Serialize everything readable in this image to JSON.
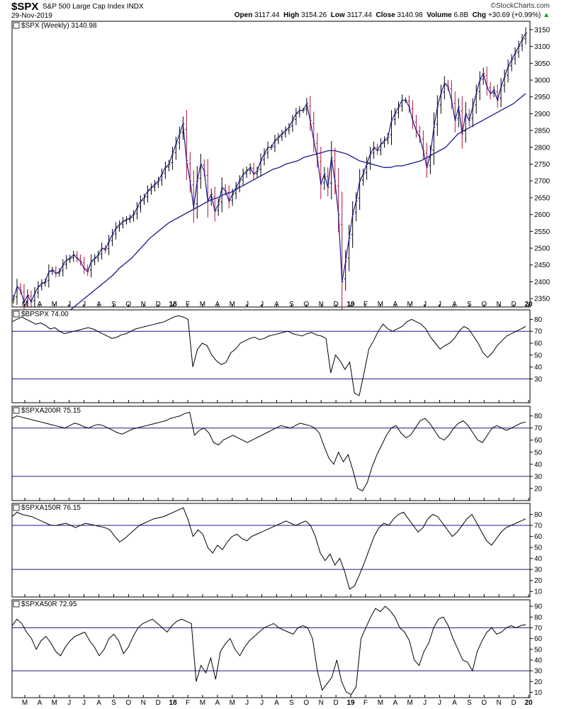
{
  "header": {
    "symbol": "$SPX",
    "name": "S&P 500 Large Cap Index",
    "exchange": "INDX",
    "date": "29-Nov-2019",
    "logo": "©StockCharts.com",
    "open_label": "Open",
    "open": "3117.44",
    "high_label": "High",
    "high": "3154.26",
    "low_label": "Low",
    "low": "3117.44",
    "close_label": "Close",
    "close": "3140.98",
    "volume_label": "Volume",
    "volume": "6.8B",
    "chg_label": "Chg",
    "chg": "+30.69 (+0.99%)",
    "chg_arrow": "▲"
  },
  "colors": {
    "up_bar": "#000000",
    "down_bar": "#b0103a",
    "price_line": "#1a1a8c",
    "ma_line": "#1a1a8c",
    "ref_line": "#1a1a8c",
    "indicator": "#000000"
  },
  "x_axis": {
    "ticks": [
      "M",
      "A",
      "M",
      "J",
      "J",
      "A",
      "S",
      "O",
      "N",
      "D",
      "18",
      "F",
      "M",
      "A",
      "M",
      "J",
      "J",
      "A",
      "S",
      "O",
      "N",
      "D",
      "19",
      "F",
      "M",
      "A",
      "M",
      "J",
      "J",
      "A",
      "S",
      "O",
      "N",
      "D",
      "20"
    ],
    "bold_ticks": [
      "18",
      "19",
      "20"
    ]
  },
  "chart_data": [
    {
      "type": "line",
      "title": "$SPX (Weekly) 3140.98",
      "style": "weekly OHLC bars with close line and 40-week moving average",
      "ylim": [
        2325,
        3175
      ],
      "y_ticks": [
        2350,
        2400,
        2450,
        2500,
        2550,
        2600,
        2650,
        2700,
        2750,
        2800,
        2850,
        2900,
        2950,
        3000,
        3050,
        3100,
        3150
      ],
      "x_range": [
        "2017-03",
        "2019-12"
      ],
      "series": [
        {
          "values": [
            2350,
            2385,
            2375,
            2340,
            2360,
            2340,
            2365,
            2385,
            2395,
            2400,
            2430,
            2435,
            2425,
            2430,
            2450,
            2465,
            2470,
            2480,
            2470,
            2460,
            2440,
            2430,
            2460,
            2470,
            2480,
            2500,
            2495,
            2520,
            2540,
            2560,
            2570,
            2580,
            2585,
            2590,
            2600,
            2620,
            2640,
            2650,
            2670,
            2680,
            2690,
            2700,
            2720,
            2740,
            2750,
            2780,
            2810,
            2840,
            2870,
            2760,
            2700,
            2620,
            2700,
            2750,
            2730,
            2640,
            2660,
            2610,
            2630,
            2680,
            2670,
            2640,
            2660,
            2680,
            2700,
            2720,
            2730,
            2740,
            2720,
            2730,
            2760,
            2780,
            2800,
            2800,
            2820,
            2830,
            2840,
            2850,
            2860,
            2880,
            2900,
            2910,
            2910,
            2930,
            2880,
            2820,
            2770,
            2690,
            2720,
            2680,
            2770,
            2700,
            2600,
            2400,
            2460,
            2530,
            2600,
            2640,
            2700,
            2720,
            2750,
            2780,
            2800,
            2790,
            2810,
            2820,
            2830,
            2880,
            2900,
            2920,
            2940,
            2940,
            2920,
            2880,
            2850,
            2830,
            2790,
            2740,
            2780,
            2860,
            2920,
            2960,
            2990,
            2980,
            2940,
            2880,
            2920,
            2840,
            2900,
            2880,
            2920,
            2960,
            3000,
            3020,
            2980,
            2960,
            2970,
            2940,
            2980,
            3010,
            3040,
            3060,
            3080,
            3100,
            3120,
            3140
          ]
        },
        {
          "values": [
            2300,
            2315,
            2330,
            2345,
            2360,
            2375,
            2390,
            2405,
            2420,
            2440,
            2455,
            2470,
            2490,
            2510,
            2530,
            2545,
            2560,
            2575,
            2585,
            2595,
            2605,
            2615,
            2625,
            2635,
            2645,
            2650,
            2660,
            2665,
            2675,
            2685,
            2695,
            2705,
            2715,
            2725,
            2735,
            2740,
            2750,
            2755,
            2760,
            2770,
            2775,
            2780,
            2785,
            2790,
            2790,
            2785,
            2780,
            2770,
            2760,
            2755,
            2750,
            2745,
            2740,
            2740,
            2745,
            2745,
            2750,
            2755,
            2760,
            2770,
            2780,
            2790,
            2800,
            2820,
            2840,
            2850,
            2860,
            2870,
            2880,
            2890,
            2900,
            2910,
            2920,
            2930,
            2945,
            2960
          ]
        }
      ]
    },
    {
      "type": "line",
      "title": "$BPSPX 74.00",
      "ylim": [
        10,
        88
      ],
      "y_ticks": [
        30,
        40,
        50,
        60,
        70,
        80
      ],
      "ref_lines": [
        70,
        30
      ],
      "series": [
        {
          "values": [
            78,
            80,
            82,
            80,
            78,
            76,
            77,
            75,
            72,
            73,
            70,
            68,
            69,
            70,
            71,
            72,
            73,
            72,
            70,
            68,
            66,
            64,
            65,
            67,
            68,
            70,
            72,
            73,
            74,
            75,
            76,
            77,
            78,
            80,
            82,
            83,
            82,
            80,
            40,
            55,
            60,
            58,
            50,
            45,
            42,
            44,
            52,
            55,
            60,
            62,
            64,
            65,
            63,
            64,
            66,
            67,
            68,
            69,
            70,
            68,
            67,
            66,
            68,
            69,
            67,
            66,
            64,
            35,
            50,
            45,
            38,
            44,
            18,
            16,
            35,
            55,
            62,
            70,
            76,
            72,
            70,
            72,
            74,
            78,
            80,
            78,
            76,
            72,
            65,
            60,
            55,
            58,
            60,
            64,
            70,
            74,
            72,
            66,
            60,
            52,
            48,
            52,
            58,
            62,
            66,
            68,
            70,
            72,
            74
          ]
        }
      ]
    },
    {
      "type": "line",
      "title": "$SPXA200R 75.15",
      "ylim": [
        10,
        88
      ],
      "y_ticks": [
        20,
        30,
        40,
        50,
        60,
        70,
        80
      ],
      "ref_lines": [
        70,
        30
      ],
      "series": [
        {
          "values": [
            78,
            80,
            79,
            78,
            77,
            76,
            75,
            74,
            73,
            72,
            71,
            70,
            72,
            74,
            73,
            71,
            70,
            72,
            73,
            72,
            70,
            68,
            66,
            65,
            67,
            69,
            70,
            71,
            72,
            73,
            74,
            75,
            76,
            78,
            79,
            80,
            82,
            83,
            64,
            68,
            70,
            66,
            58,
            56,
            60,
            62,
            64,
            62,
            60,
            58,
            60,
            62,
            64,
            66,
            68,
            70,
            72,
            71,
            70,
            72,
            74,
            73,
            72,
            70,
            66,
            55,
            45,
            40,
            50,
            42,
            48,
            35,
            20,
            18,
            25,
            38,
            48,
            56,
            64,
            70,
            72,
            66,
            62,
            64,
            70,
            76,
            78,
            74,
            68,
            62,
            60,
            64,
            70,
            74,
            76,
            72,
            66,
            60,
            58,
            64,
            70,
            72,
            70,
            68,
            70,
            72,
            74,
            75
          ]
        }
      ]
    },
    {
      "type": "line",
      "title": "$SPXA150R 76.15",
      "ylim": [
        5,
        90
      ],
      "y_ticks": [
        10,
        20,
        30,
        40,
        50,
        60,
        70,
        80
      ],
      "ref_lines": [
        70,
        30
      ],
      "series": [
        {
          "values": [
            78,
            82,
            80,
            79,
            78,
            76,
            74,
            72,
            70,
            70,
            71,
            72,
            70,
            68,
            70,
            72,
            71,
            70,
            69,
            68,
            66,
            60,
            55,
            58,
            62,
            66,
            70,
            72,
            74,
            76,
            77,
            78,
            80,
            82,
            84,
            86,
            75,
            60,
            66,
            62,
            50,
            45,
            52,
            48,
            55,
            60,
            62,
            58,
            56,
            60,
            62,
            64,
            66,
            68,
            70,
            72,
            74,
            72,
            70,
            72,
            74,
            70,
            60,
            45,
            38,
            44,
            34,
            40,
            28,
            12,
            15,
            25,
            36,
            48,
            60,
            68,
            72,
            70,
            76,
            80,
            82,
            76,
            70,
            64,
            68,
            76,
            80,
            78,
            72,
            66,
            60,
            64,
            70,
            76,
            80,
            72,
            64,
            56,
            52,
            58,
            64,
            68,
            70,
            72,
            74,
            76
          ]
        }
      ]
    },
    {
      "type": "line",
      "title": "$SPXA50R 72.95",
      "ylim": [
        5,
        96
      ],
      "y_ticks": [
        10,
        20,
        30,
        40,
        50,
        60,
        70,
        80,
        90
      ],
      "ref_lines": [
        70,
        30
      ],
      "series": [
        {
          "values": [
            72,
            78,
            74,
            66,
            60,
            50,
            58,
            62,
            56,
            48,
            44,
            52,
            58,
            62,
            64,
            66,
            58,
            52,
            44,
            50,
            60,
            64,
            58,
            46,
            52,
            62,
            70,
            74,
            76,
            78,
            74,
            70,
            66,
            72,
            76,
            78,
            76,
            74,
            20,
            35,
            28,
            42,
            22,
            48,
            55,
            60,
            50,
            44,
            52,
            58,
            62,
            66,
            70,
            72,
            74,
            70,
            68,
            66,
            64,
            70,
            72,
            70,
            60,
            30,
            12,
            18,
            24,
            40,
            20,
            10,
            8,
            15,
            60,
            70,
            80,
            88,
            85,
            90,
            86,
            80,
            70,
            66,
            58,
            40,
            35,
            48,
            56,
            70,
            78,
            80,
            72,
            60,
            50,
            40,
            38,
            30,
            48,
            58,
            66,
            70,
            64,
            66,
            70,
            72,
            70,
            72,
            73
          ]
        }
      ]
    }
  ]
}
